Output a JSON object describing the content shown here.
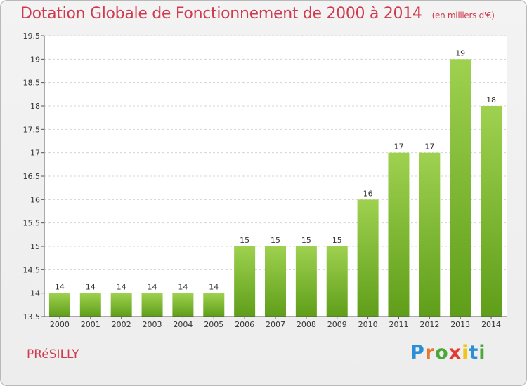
{
  "title": "Dotation Globale de Fonctionnement de 2000 à 2014",
  "subtitle": "(en milliers d'€)",
  "commune": "PRéSILLY",
  "logo": {
    "letters": [
      "P",
      "r",
      "o",
      "x",
      "i",
      "t",
      "i"
    ],
    "colors": [
      "#2b8fd6",
      "#e8762b",
      "#49a838",
      "#e53935",
      "#f0c419",
      "#2b8fd6",
      "#49a838"
    ]
  },
  "chart_data": {
    "type": "bar",
    "categories": [
      "2000",
      "2001",
      "2002",
      "2003",
      "2004",
      "2005",
      "2006",
      "2007",
      "2008",
      "2009",
      "2010",
      "2011",
      "2012",
      "2013",
      "2014"
    ],
    "values": [
      14,
      14,
      14,
      14,
      14,
      14,
      15,
      15,
      15,
      15,
      16,
      17,
      17,
      19,
      18
    ],
    "data_labels": [
      "14",
      "14",
      "14",
      "14",
      "14",
      "14",
      "15",
      "15",
      "15",
      "15",
      "16",
      "17",
      "17",
      "19",
      "18"
    ],
    "ylim": [
      13.5,
      19.5
    ],
    "yticks": [
      13.5,
      14,
      14.5,
      15,
      15.5,
      16,
      16.5,
      17,
      17.5,
      18,
      18.5,
      19,
      19.5
    ],
    "ytick_labels": [
      "13.5",
      "14",
      "14.5",
      "15",
      "15.5",
      "16",
      "16.5",
      "17",
      "17.5",
      "18",
      "18.5",
      "19",
      "19.5"
    ],
    "grid": true,
    "colors": {
      "bar_light": "#9ed14f",
      "bar_dark": "#5f9e1a",
      "grid": "#d4d4d4",
      "axis": "#555555",
      "text_accent": "#d03a4e"
    }
  }
}
